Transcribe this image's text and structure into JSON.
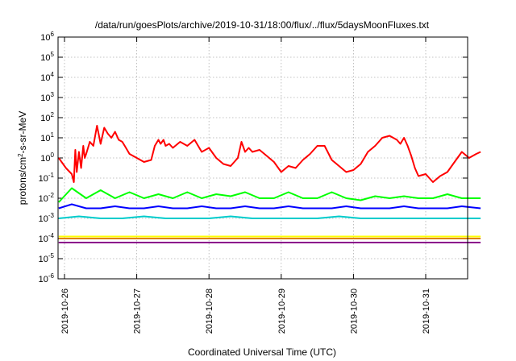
{
  "chart_data": {
    "type": "line",
    "title": "/data/run/goesPlots/archive/2019-10-31/18:00/flux/../flux/5daysMoonFluxes.txt",
    "xlabel": "Coordinated Universal Time (UTC)",
    "ylabel": {
      "base": "protons/cm",
      "sup": "2",
      "rest": "-s-sr-MeV"
    },
    "x_ticks": [
      "2019-10-26",
      "2019-10-27",
      "2019-10-28",
      "2019-10-29",
      "2019-10-30",
      "2019-10-31"
    ],
    "y_scale": "log",
    "ylim_exp": [
      -6,
      6
    ],
    "y_tick_exps": [
      -6,
      -5,
      -4,
      -3,
      -2,
      -1,
      0,
      1,
      2,
      3,
      4,
      5,
      6
    ],
    "y_tick_base": "10",
    "grid": true,
    "colors": [
      "#ff0000",
      "#00ff00",
      "#0000ff",
      "#00cccc",
      "#ffff00",
      "#e08000",
      "#8b008b"
    ],
    "series": [
      {
        "color": "#ff0000",
        "x": [
          -0.08,
          0.02,
          0.1,
          0.13,
          0.15,
          0.17,
          0.2,
          0.23,
          0.26,
          0.28,
          0.3,
          0.35,
          0.4,
          0.45,
          0.5,
          0.55,
          0.6,
          0.65,
          0.7,
          0.75,
          0.8,
          0.85,
          0.9,
          1.0,
          1.1,
          1.2,
          1.25,
          1.3,
          1.33,
          1.37,
          1.4,
          1.45,
          1.5,
          1.6,
          1.7,
          1.8,
          1.9,
          2.0,
          2.1,
          2.2,
          2.3,
          2.4,
          2.45,
          2.5,
          2.55,
          2.6,
          2.7,
          2.8,
          2.9,
          3.0,
          3.1,
          3.2,
          3.3,
          3.4,
          3.5,
          3.6,
          3.7,
          3.8,
          3.9,
          4.0,
          4.1,
          4.2,
          4.3,
          4.4,
          4.5,
          4.6,
          4.65,
          4.7,
          4.75,
          4.8,
          4.85,
          4.9,
          5.0,
          5.1,
          5.2,
          5.3,
          5.4,
          5.5,
          5.6,
          5.7,
          5.76
        ],
        "y": [
          0.0,
          -0.5,
          -0.8,
          -1.2,
          0.4,
          -0.7,
          0.3,
          -0.5,
          0.6,
          0.0,
          0.2,
          0.8,
          0.6,
          1.6,
          0.7,
          1.5,
          1.2,
          1.0,
          1.3,
          0.9,
          0.8,
          0.5,
          0.2,
          0.0,
          -0.2,
          -0.1,
          0.6,
          0.9,
          0.7,
          0.9,
          0.6,
          0.7,
          0.5,
          0.8,
          0.6,
          0.9,
          0.3,
          0.5,
          0.0,
          -0.3,
          -0.4,
          0.0,
          0.8,
          0.3,
          0.5,
          0.3,
          0.4,
          0.1,
          -0.2,
          -0.7,
          -0.4,
          -0.5,
          -0.1,
          0.2,
          0.6,
          0.6,
          -0.1,
          -0.4,
          -0.7,
          -0.6,
          -0.3,
          0.3,
          0.6,
          1.0,
          1.1,
          0.9,
          0.7,
          1.0,
          0.6,
          0.1,
          -0.5,
          -0.9,
          -0.8,
          -1.2,
          -0.9,
          -0.7,
          -0.2,
          0.3,
          0.0,
          0.2,
          0.3
        ]
      },
      {
        "color": "#00ff00",
        "x": [
          -0.08,
          0.1,
          0.3,
          0.5,
          0.7,
          0.9,
          1.1,
          1.3,
          1.5,
          1.7,
          1.9,
          2.1,
          2.3,
          2.5,
          2.7,
          2.9,
          3.1,
          3.3,
          3.5,
          3.7,
          3.9,
          4.1,
          4.3,
          4.5,
          4.7,
          4.9,
          5.1,
          5.3,
          5.5,
          5.76
        ],
        "y": [
          -2.2,
          -1.5,
          -2.0,
          -1.6,
          -2.0,
          -1.7,
          -2.0,
          -1.8,
          -2.0,
          -1.7,
          -2.0,
          -1.8,
          -1.9,
          -1.7,
          -2.0,
          -2.0,
          -1.7,
          -2.0,
          -2.0,
          -1.7,
          -2.0,
          -2.1,
          -1.9,
          -2.0,
          -1.9,
          -2.0,
          -2.0,
          -1.8,
          -2.0,
          -2.0
        ]
      },
      {
        "color": "#0000ff",
        "x": [
          -0.08,
          0.1,
          0.3,
          0.5,
          0.7,
          0.9,
          1.1,
          1.3,
          1.5,
          1.7,
          1.9,
          2.1,
          2.3,
          2.5,
          2.7,
          2.9,
          3.1,
          3.3,
          3.5,
          3.7,
          3.9,
          4.1,
          4.3,
          4.5,
          4.7,
          4.9,
          5.1,
          5.3,
          5.5,
          5.76
        ],
        "y": [
          -2.5,
          -2.3,
          -2.5,
          -2.5,
          -2.4,
          -2.5,
          -2.5,
          -2.4,
          -2.5,
          -2.5,
          -2.4,
          -2.5,
          -2.5,
          -2.4,
          -2.5,
          -2.5,
          -2.4,
          -2.5,
          -2.5,
          -2.5,
          -2.4,
          -2.5,
          -2.5,
          -2.5,
          -2.4,
          -2.5,
          -2.5,
          -2.5,
          -2.4,
          -2.5
        ]
      },
      {
        "color": "#00cccc",
        "x": [
          -0.08,
          0.2,
          0.5,
          0.8,
          1.1,
          1.4,
          1.7,
          2.0,
          2.3,
          2.6,
          2.9,
          3.2,
          3.5,
          3.8,
          4.1,
          4.4,
          4.7,
          5.0,
          5.3,
          5.76
        ],
        "y": [
          -3.0,
          -2.9,
          -3.0,
          -3.0,
          -2.9,
          -3.0,
          -3.0,
          -3.0,
          -2.9,
          -3.0,
          -3.0,
          -3.0,
          -3.0,
          -2.9,
          -3.0,
          -3.0,
          -3.0,
          -3.0,
          -3.0,
          -3.0
        ]
      },
      {
        "color": "#ffff00",
        "x": [
          -0.08,
          0.3,
          0.6,
          0.9,
          1.2,
          1.5,
          1.8,
          2.1,
          2.4,
          2.7,
          3.0,
          3.3,
          3.6,
          3.9,
          4.2,
          4.5,
          4.8,
          5.1,
          5.4,
          5.76
        ],
        "y": [
          -3.9,
          -3.9,
          -3.9,
          -3.9,
          -3.9,
          -3.9,
          -3.9,
          -3.9,
          -3.9,
          -3.9,
          -3.9,
          -3.9,
          -3.9,
          -3.9,
          -3.9,
          -3.9,
          -3.9,
          -3.9,
          -3.9,
          -3.9
        ]
      },
      {
        "color": "#e08000",
        "x": [
          -0.08,
          0.3,
          0.6,
          0.9,
          1.2,
          1.5,
          1.8,
          2.1,
          2.4,
          2.7,
          3.0,
          3.3,
          3.6,
          3.9,
          4.2,
          4.5,
          4.8,
          5.1,
          5.4,
          5.76
        ],
        "y": [
          -4.0,
          -4.0,
          -4.0,
          -4.0,
          -4.0,
          -4.0,
          -4.0,
          -4.0,
          -4.0,
          -4.0,
          -4.0,
          -4.0,
          -4.0,
          -4.0,
          -4.0,
          -4.0,
          -4.0,
          -4.0,
          -4.0,
          -4.0
        ]
      },
      {
        "color": "#8b008b",
        "x": [
          -0.08,
          0.3,
          0.6,
          0.9,
          1.2,
          1.5,
          1.8,
          2.1,
          2.4,
          2.7,
          3.0,
          3.3,
          3.6,
          3.9,
          4.2,
          4.5,
          4.8,
          5.1,
          5.4,
          5.76
        ],
        "y": [
          -4.2,
          -4.2,
          -4.2,
          -4.2,
          -4.2,
          -4.2,
          -4.2,
          -4.2,
          -4.2,
          -4.2,
          -4.2,
          -4.2,
          -4.2,
          -4.2,
          -4.2,
          -4.2,
          -4.2,
          -4.2,
          -4.2,
          -4.2
        ]
      }
    ]
  }
}
